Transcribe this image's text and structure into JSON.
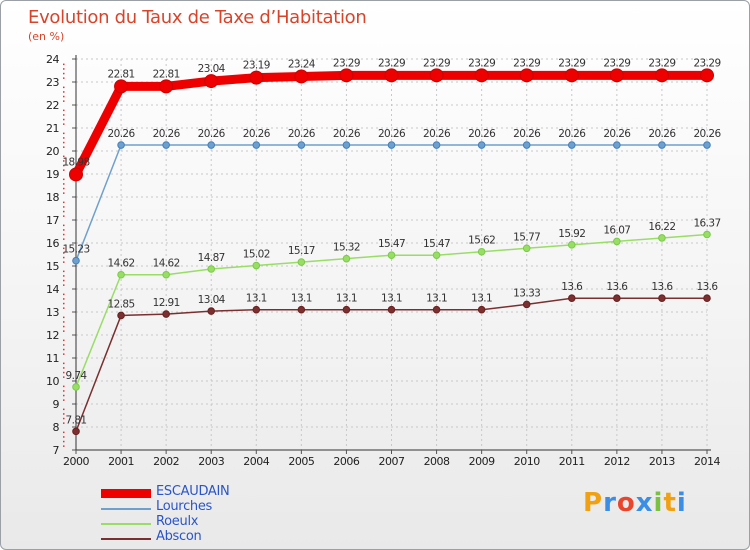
{
  "chart_data": {
    "type": "line",
    "title": "Evolution du Taux de Taxe d’Habitation",
    "ylabel": "(en %)",
    "xlabel": "",
    "ylim": [
      7,
      24
    ],
    "yticks": [
      "7",
      "8",
      "9",
      "10",
      "11",
      "12",
      "13",
      "14",
      "15",
      "16",
      "17",
      "18",
      "19",
      "20",
      "21",
      "22",
      "23",
      "24"
    ],
    "categories": [
      "2000",
      "2001",
      "2002",
      "2003",
      "2004",
      "2005",
      "2006",
      "2007",
      "2008",
      "2009",
      "2010",
      "2011",
      "2012",
      "2013",
      "2014"
    ],
    "series": [
      {
        "name": "ESCAUDAIN",
        "color": "#ee0000",
        "marker": "#cc0000",
        "bold": true,
        "values": [
          18.98,
          22.81,
          22.81,
          23.04,
          23.19,
          23.24,
          23.29,
          23.29,
          23.29,
          23.29,
          23.29,
          23.29,
          23.29,
          23.29,
          23.29
        ],
        "labels": [
          "18.98",
          "22.81",
          "22.81",
          "23.04",
          "23.19",
          "23.24",
          "23.29",
          "23.29",
          "23.29",
          "23.29",
          "23.29",
          "23.29",
          "23.29",
          "23.29",
          "23.29"
        ]
      },
      {
        "name": "Lourches",
        "color": "#6fa0cc",
        "marker": "#3f7fbf",
        "bold": false,
        "values": [
          15.23,
          20.26,
          20.26,
          20.26,
          20.26,
          20.26,
          20.26,
          20.26,
          20.26,
          20.26,
          20.26,
          20.26,
          20.26,
          20.26,
          20.26
        ],
        "labels": [
          "15.23",
          "20.26",
          "20.26",
          "20.26",
          "20.26",
          "20.26",
          "20.26",
          "20.26",
          "20.26",
          "20.26",
          "20.26",
          "20.26",
          "20.26",
          "20.26",
          "20.26"
        ]
      },
      {
        "name": "Roeulx",
        "color": "#99dd66",
        "marker": "#77cc44",
        "bold": false,
        "values": [
          9.74,
          14.62,
          14.62,
          14.87,
          15.02,
          15.17,
          15.32,
          15.47,
          15.47,
          15.62,
          15.77,
          15.92,
          16.07,
          16.22,
          16.37
        ],
        "labels": [
          "9.74",
          "14.62",
          "14.62",
          "14.87",
          "15.02",
          "15.17",
          "15.32",
          "15.47",
          "15.47",
          "15.62",
          "15.77",
          "15.92",
          "16.07",
          "16.22",
          "16.37"
        ]
      },
      {
        "name": "Abscon",
        "color": "#7a3030",
        "marker": "#6b1f1f",
        "bold": false,
        "values": [
          7.81,
          12.85,
          12.91,
          13.04,
          13.1,
          13.1,
          13.1,
          13.1,
          13.1,
          13.1,
          13.33,
          13.6,
          13.6,
          13.6,
          13.6
        ],
        "labels": [
          "7.81",
          "12.85",
          "12.91",
          "13.04",
          "13.1",
          "13.1",
          "13.1",
          "13.1",
          "13.1",
          "13.1",
          "13.33",
          "13.6",
          "13.6",
          "13.6",
          "13.6"
        ]
      }
    ]
  },
  "legend": {
    "items": [
      "ESCAUDAIN",
      "Lourches",
      "Roeulx",
      "Abscon"
    ]
  },
  "logo": {
    "letters": [
      "P",
      "r",
      "o",
      "x",
      "i",
      "t",
      "i"
    ],
    "colors": [
      "#f0a010",
      "#3a8ee6",
      "#e8452c",
      "#3a8ee6",
      "#79c043",
      "#f0a010",
      "#3a8ee6"
    ]
  }
}
